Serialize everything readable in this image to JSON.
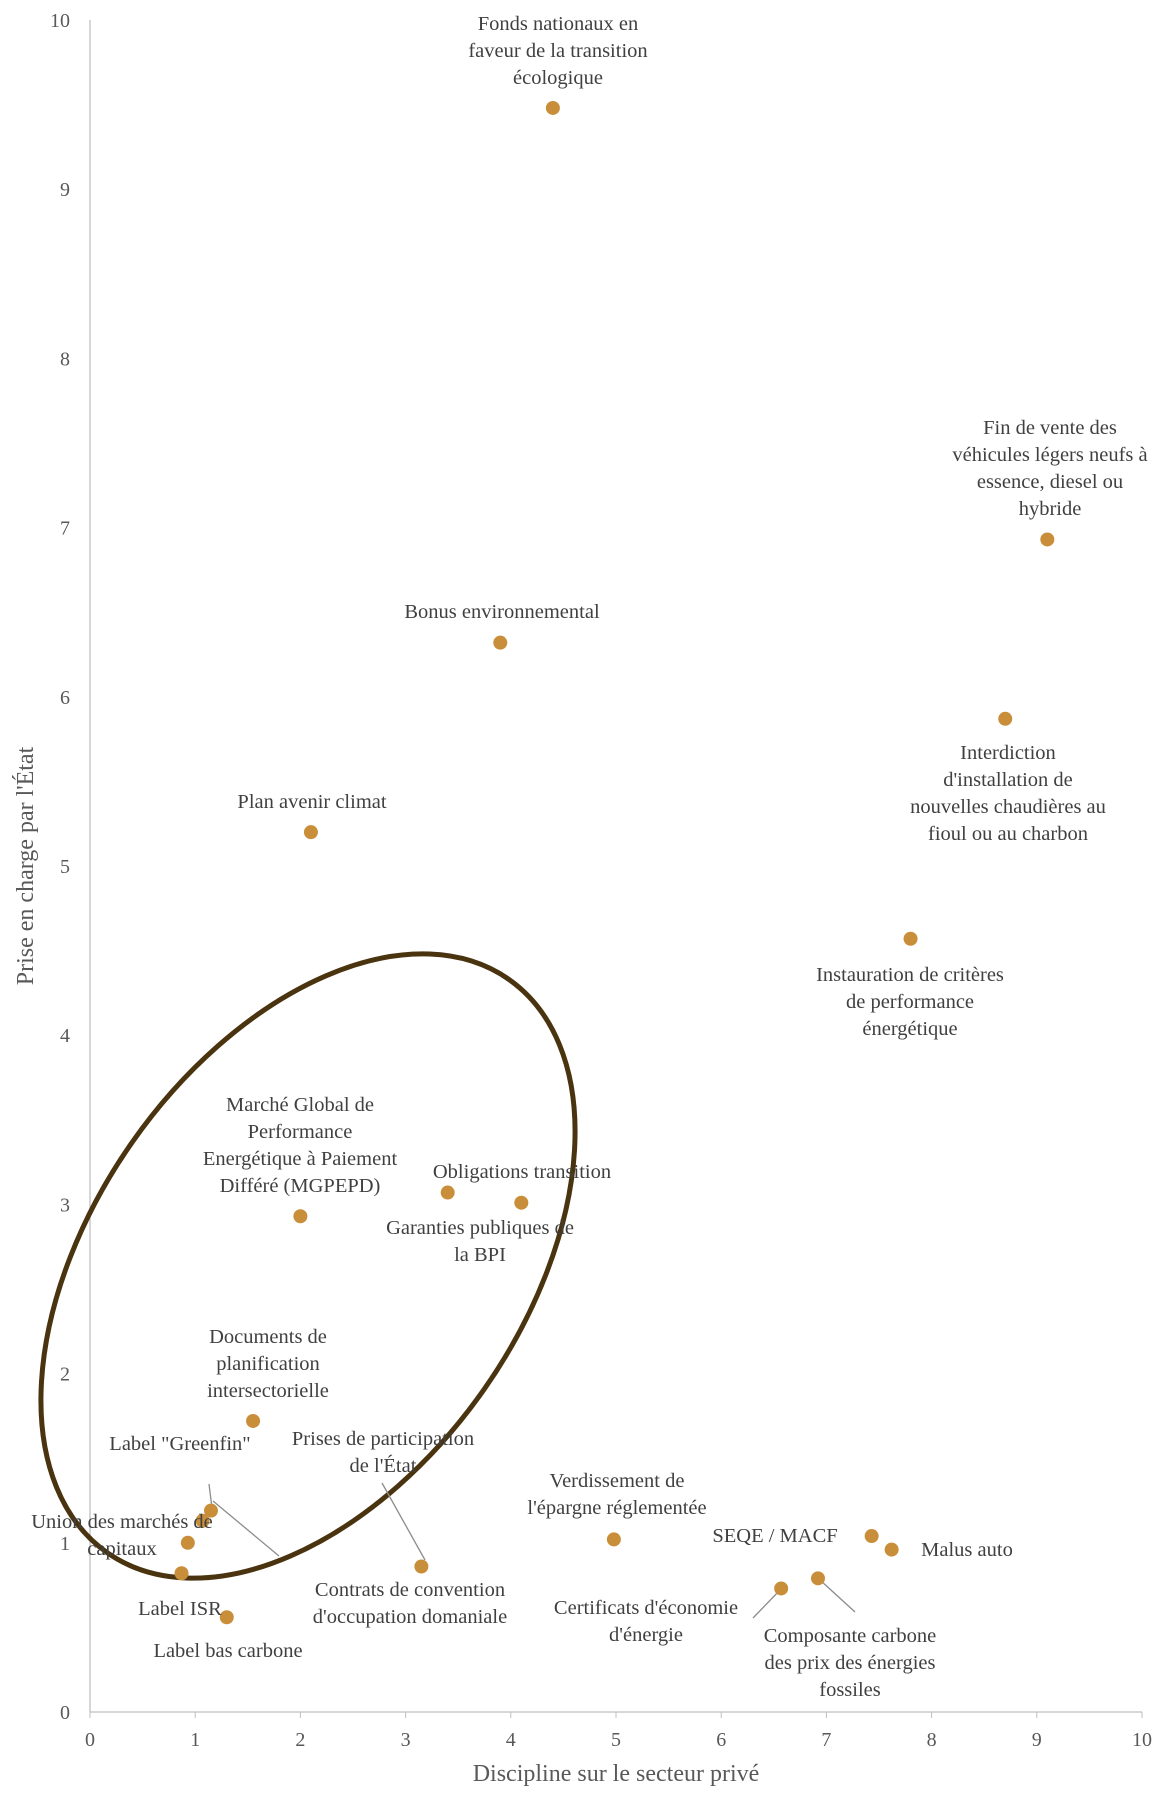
{
  "chart_data": {
    "type": "scatter",
    "title": "",
    "xlabel": "Discipline sur le secteur privé",
    "ylabel": "Prise en charge par l'État",
    "xlim": [
      0,
      10
    ],
    "ylim": [
      0,
      10
    ],
    "x_ticks": [
      "0",
      "1",
      "2",
      "3",
      "4",
      "5",
      "6",
      "7",
      "8",
      "9",
      "10"
    ],
    "y_ticks": [
      "0",
      "1",
      "2",
      "3",
      "4",
      "5",
      "6",
      "7",
      "8",
      "9",
      "10"
    ],
    "grid": false,
    "legend": "none",
    "marker_color": "#C98E3A",
    "annotation": "ellipse around the lower-left cluster",
    "points": [
      {
        "x": 4.4,
        "y": 9.48,
        "label": [
          "Fonds nationaux en",
          "faveur de la transition",
          "écologique"
        ]
      },
      {
        "x": 9.1,
        "y": 6.93,
        "label": [
          "Fin de vente des",
          "véhicules légers neufs à",
          "essence, diesel ou",
          "hybride"
        ]
      },
      {
        "x": 3.9,
        "y": 6.32,
        "label": [
          "Bonus environnemental"
        ]
      },
      {
        "x": 8.7,
        "y": 5.87,
        "label": [
          "Interdiction",
          "d'installation de",
          "nouvelles chaudières au",
          "fioul ou au charbon"
        ]
      },
      {
        "x": 2.1,
        "y": 5.2,
        "label": [
          "Plan avenir climat"
        ]
      },
      {
        "x": 7.8,
        "y": 4.57,
        "label": [
          "Instauration de critères",
          "de performance",
          "énergétique"
        ]
      },
      {
        "x": 2.0,
        "y": 2.93,
        "label": [
          "Marché Global de",
          "Performance",
          "Energétique à Paiement",
          "Différé (MGPEPD)"
        ]
      },
      {
        "x": 3.4,
        "y": 3.07,
        "label": [
          "Obligations transition"
        ]
      },
      {
        "x": 4.1,
        "y": 3.01,
        "label": [
          "Garanties publiques de",
          "la BPI"
        ]
      },
      {
        "x": 1.55,
        "y": 1.72,
        "label": [
          "Documents de",
          "planification",
          "intersectorielle"
        ]
      },
      {
        "x": 1.15,
        "y": 1.19,
        "label": [
          "Label \"Greenfin\""
        ]
      },
      {
        "x": 1.07,
        "y": 1.13,
        "label": [
          "Contrats de convention",
          "d'occupation domaniale"
        ]
      },
      {
        "x": 0.93,
        "y": 1.0,
        "label": [
          "Union des marchés de",
          "capitaux"
        ]
      },
      {
        "x": 0.87,
        "y": 0.82,
        "label": [
          "Label ISR"
        ]
      },
      {
        "x": 1.3,
        "y": 0.56,
        "label": [
          "Label bas carbone"
        ]
      },
      {
        "x": 3.15,
        "y": 0.86,
        "label": [
          "Prises de participation",
          "de l'État"
        ]
      },
      {
        "x": 4.98,
        "y": 1.02,
        "label": [
          "Verdissement de",
          "l'épargne réglementée"
        ]
      },
      {
        "x": 7.43,
        "y": 1.04,
        "label": [
          "SEQE / MACF"
        ]
      },
      {
        "x": 7.62,
        "y": 0.96,
        "label": [
          "Malus auto"
        ]
      },
      {
        "x": 6.57,
        "y": 0.73,
        "label": [
          "Certificats d'économie",
          "d'énergie"
        ]
      },
      {
        "x": 6.92,
        "y": 0.79,
        "label": [
          "Composante carbone",
          "des prix des énergies",
          "fossiles"
        ]
      }
    ]
  }
}
